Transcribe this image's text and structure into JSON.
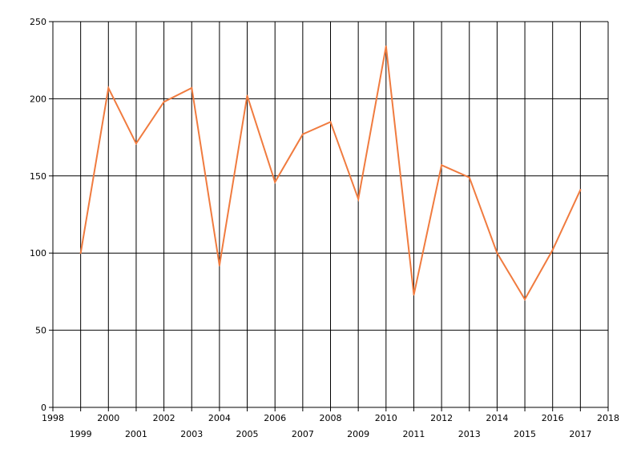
{
  "chart_data": {
    "type": "line",
    "title": "",
    "xlabel": "",
    "ylabel": "",
    "xlim": [
      1998,
      2018
    ],
    "ylim": [
      0,
      250
    ],
    "x_ticks": [
      1998,
      1999,
      2000,
      2001,
      2002,
      2003,
      2004,
      2005,
      2006,
      2007,
      2008,
      2009,
      2010,
      2011,
      2012,
      2013,
      2014,
      2015,
      2016,
      2017,
      2018
    ],
    "y_ticks": [
      0,
      50,
      100,
      150,
      200,
      250
    ],
    "grid": true,
    "legend": "none",
    "series": [
      {
        "color": "#f07b3f",
        "x": [
          1999,
          2000,
          2001,
          2002,
          2003,
          2004,
          2005,
          2006,
          2007,
          2008,
          2009,
          2010,
          2011,
          2012,
          2013,
          2014,
          2015,
          2016,
          2017
        ],
        "values": [
          100,
          207,
          171,
          198,
          207,
          92,
          202,
          146,
          177,
          185,
          135,
          234,
          73,
          157,
          149,
          100,
          70,
          102,
          141
        ]
      }
    ]
  }
}
